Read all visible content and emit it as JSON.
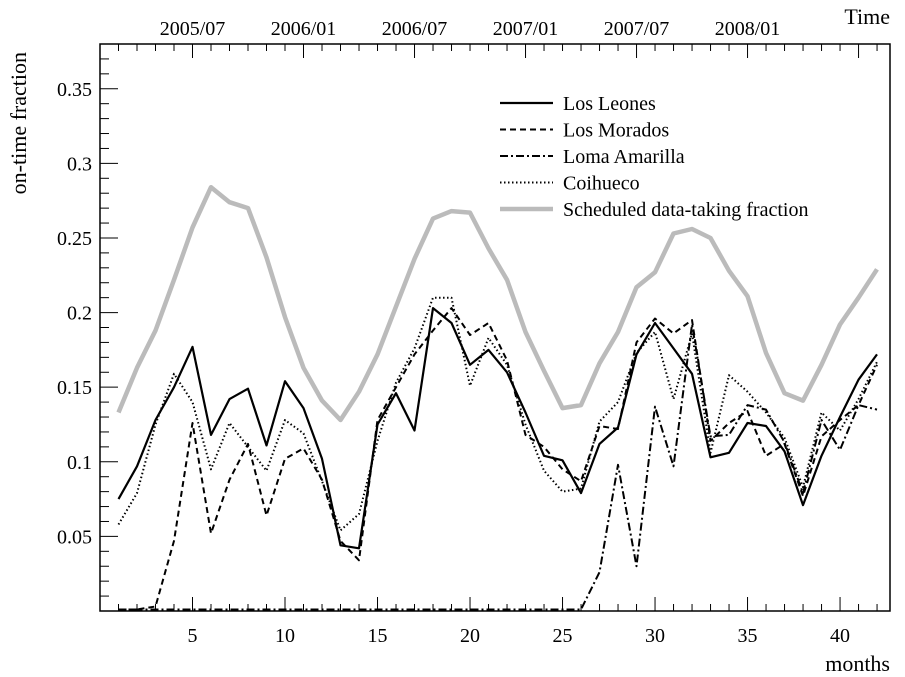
{
  "chart_data": {
    "type": "line",
    "xlabel": "months",
    "ylabel": "on-time fraction",
    "top_axis_label": "Time",
    "xlim": [
      0,
      42.7
    ],
    "ylim": [
      0,
      0.38
    ],
    "x_ticks": [
      5,
      10,
      15,
      20,
      25,
      30,
      35,
      40
    ],
    "y_ticks": [
      0.05,
      0.1,
      0.15,
      0.2,
      0.25,
      0.3,
      0.35
    ],
    "top_ticks": [
      {
        "label": "2005/07",
        "x": 5
      },
      {
        "label": "2006/01",
        "x": 11
      },
      {
        "label": "2006/07",
        "x": 17
      },
      {
        "label": "2007/01",
        "x": 23
      },
      {
        "label": "2007/07",
        "x": 29
      },
      {
        "label": "2008/01",
        "x": 35
      }
    ],
    "grid": false,
    "legend_position": "top-right",
    "x": [
      1,
      2,
      3,
      4,
      5,
      6,
      7,
      8,
      9,
      10,
      11,
      12,
      13,
      14,
      15,
      16,
      17,
      18,
      19,
      20,
      21,
      22,
      23,
      24,
      25,
      26,
      27,
      28,
      29,
      30,
      31,
      32,
      33,
      34,
      35,
      36,
      37,
      38,
      39,
      40,
      41,
      42
    ],
    "series": [
      {
        "name": "Los Leones",
        "style": "solid",
        "color": "#000000",
        "values": [
          0.075,
          0.097,
          0.128,
          0.15,
          0.177,
          0.118,
          0.142,
          0.149,
          0.111,
          0.154,
          0.136,
          0.102,
          0.044,
          0.042,
          0.125,
          0.146,
          0.121,
          0.203,
          0.193,
          0.165,
          0.175,
          0.16,
          0.133,
          0.104,
          0.101,
          0.079,
          0.112,
          0.123,
          0.172,
          0.193,
          0.176,
          0.159,
          0.103,
          0.106,
          0.126,
          0.124,
          0.107,
          0.071,
          0.104,
          0.13,
          0.155,
          0.172
        ]
      },
      {
        "name": "Los Morados",
        "style": "dashed",
        "color": "#000000",
        "values": [
          0.001,
          0.001,
          0.003,
          0.047,
          0.126,
          0.052,
          0.088,
          0.112,
          0.064,
          0.102,
          0.109,
          0.088,
          0.047,
          0.034,
          0.128,
          0.15,
          0.172,
          0.188,
          0.203,
          0.185,
          0.193,
          0.168,
          0.118,
          0.11,
          0.095,
          0.087,
          0.124,
          0.122,
          0.18,
          0.196,
          0.186,
          0.195,
          0.114,
          0.126,
          0.134,
          0.104,
          0.112,
          0.077,
          0.117,
          0.128,
          0.138,
          0.165
        ]
      },
      {
        "name": "Loma Amarilla",
        "style": "dashdot",
        "color": "#000000",
        "values": [
          0.001,
          0.001,
          0.001,
          0.001,
          0.001,
          0.001,
          0.001,
          0.001,
          0.001,
          0.001,
          0.001,
          0.001,
          0.001,
          0.001,
          0.001,
          0.001,
          0.001,
          0.001,
          0.001,
          0.001,
          0.001,
          0.001,
          0.001,
          0.001,
          0.001,
          0.001,
          0.026,
          0.098,
          0.03,
          0.137,
          0.097,
          0.192,
          0.117,
          0.118,
          0.138,
          0.135,
          0.113,
          0.079,
          0.128,
          0.108,
          0.138,
          0.135
        ]
      },
      {
        "name": "Coihueco",
        "style": "dotted",
        "color": "#000000",
        "values": [
          0.058,
          0.079,
          0.125,
          0.159,
          0.14,
          0.095,
          0.126,
          0.11,
          0.094,
          0.128,
          0.119,
          0.087,
          0.054,
          0.065,
          0.114,
          0.153,
          0.176,
          0.21,
          0.21,
          0.151,
          0.183,
          0.165,
          0.125,
          0.094,
          0.08,
          0.082,
          0.127,
          0.14,
          0.173,
          0.187,
          0.142,
          0.186,
          0.106,
          0.158,
          0.147,
          0.133,
          0.116,
          0.083,
          0.133,
          0.121,
          0.142,
          0.167
        ]
      },
      {
        "name": "Scheduled data-taking fraction",
        "style": "thick",
        "color": "#bbbbbb",
        "values": [
          0.133,
          0.163,
          0.188,
          0.222,
          0.257,
          0.284,
          0.274,
          0.27,
          0.237,
          0.197,
          0.163,
          0.141,
          0.128,
          0.147,
          0.172,
          0.204,
          0.236,
          0.263,
          0.268,
          0.267,
          0.243,
          0.222,
          0.187,
          0.161,
          0.136,
          0.138,
          0.166,
          0.187,
          0.217,
          0.227,
          0.253,
          0.256,
          0.25,
          0.228,
          0.211,
          0.173,
          0.146,
          0.141,
          0.165,
          0.192,
          0.21,
          0.229
        ]
      }
    ]
  }
}
